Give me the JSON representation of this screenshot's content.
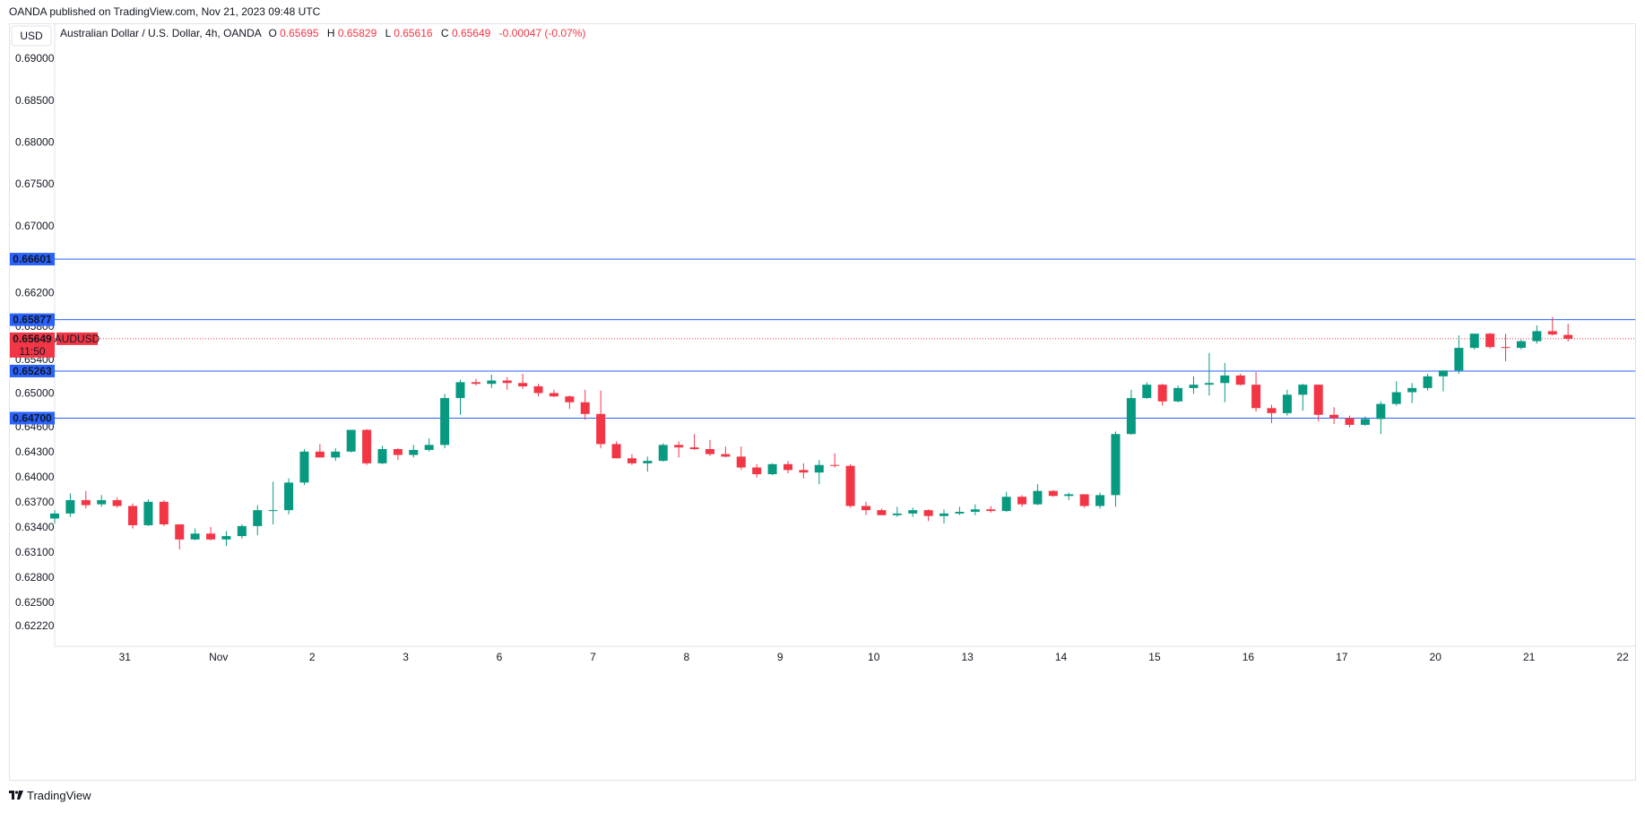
{
  "header": {
    "published_text": "OANDA published on TradingView.com, Nov 21, 2023 09:48 UTC"
  },
  "footer": {
    "logo_text": "TradingView"
  },
  "colors": {
    "up": "#089981",
    "down": "#f23645",
    "level_line": "#2962ff",
    "current_price_line": "#f23645",
    "grid_border": "#e0e3eb"
  },
  "chart_data": {
    "type": "candlestick",
    "currency_button": "USD",
    "legend": {
      "symbol_name": "Australian Dollar / U.S. Dollar, 4h, OANDA",
      "o_label": "O",
      "o_value": "0.65695",
      "h_label": "H",
      "h_value": "0.65829",
      "l_label": "L",
      "l_value": "0.65616",
      "c_label": "C",
      "c_value": "0.65649",
      "change": "-0.00047 (-0.07%)"
    },
    "y_axis": {
      "min": 0.61973,
      "max": 0.69409,
      "tick_labels": [
        "0.69000",
        "0.68500",
        "0.68000",
        "0.67500",
        "0.67000",
        "0.66200",
        "0.65800",
        "0.65400",
        "0.65000",
        "0.64600",
        "0.64300",
        "0.64000",
        "0.63700",
        "0.63400",
        "0.63100",
        "0.62800",
        "0.62500",
        "0.62220"
      ]
    },
    "x_axis": {
      "tick_labels": [
        "31",
        "Nov",
        "2",
        "3",
        "6",
        "7",
        "8",
        "9",
        "10",
        "13",
        "14",
        "15",
        "16",
        "17",
        "20",
        "21",
        "22"
      ],
      "tick_positions": [
        4.5,
        10.5,
        16.5,
        22.5,
        28.5,
        34.5,
        40.5,
        46.5,
        52.5,
        58.5,
        64.5,
        70.5,
        76.5,
        82.5,
        88.5,
        94.5,
        100.5
      ],
      "x_min": 0,
      "x_max": 101.3
    },
    "horizontal_levels": [
      {
        "label": "0.66601",
        "value": 0.66601
      },
      {
        "label": "0.65877",
        "value": 0.65877
      },
      {
        "label": "0.65263",
        "value": 0.65263
      },
      {
        "label": "0.64700",
        "value": 0.647
      }
    ],
    "current_price": {
      "value": 0.65649,
      "label": "0.65649",
      "countdown": "11:50",
      "symbol_tag": "AUDUSD"
    },
    "candles": [
      [
        0.635,
        0.636,
        0.6344,
        0.6356
      ],
      [
        0.6356,
        0.638,
        0.6352,
        0.6372
      ],
      [
        0.6372,
        0.6383,
        0.6362,
        0.6366
      ],
      [
        0.6367,
        0.6378,
        0.6364,
        0.6372
      ],
      [
        0.6372,
        0.6375,
        0.6363,
        0.6365
      ],
      [
        0.6365,
        0.6368,
        0.6338,
        0.6342
      ],
      [
        0.6342,
        0.6373,
        0.6341,
        0.637
      ],
      [
        0.637,
        0.6372,
        0.6341,
        0.6343
      ],
      [
        0.6343,
        0.6342,
        0.6313,
        0.6325
      ],
      [
        0.6325,
        0.6338,
        0.6324,
        0.6332
      ],
      [
        0.6332,
        0.634,
        0.6324,
        0.6325
      ],
      [
        0.6325,
        0.6335,
        0.6317,
        0.6329
      ],
      [
        0.6329,
        0.6343,
        0.6326,
        0.6341
      ],
      [
        0.6341,
        0.6366,
        0.633,
        0.636
      ],
      [
        0.636,
        0.6394,
        0.6343,
        0.636
      ],
      [
        0.636,
        0.6398,
        0.6355,
        0.6393
      ],
      [
        0.6393,
        0.6433,
        0.639,
        0.643
      ],
      [
        0.643,
        0.6439,
        0.6424,
        0.6423
      ],
      [
        0.6423,
        0.6434,
        0.6419,
        0.643
      ],
      [
        0.643,
        0.6456,
        0.6429,
        0.6456
      ],
      [
        0.6456,
        0.6457,
        0.6414,
        0.6416
      ],
      [
        0.6416,
        0.6437,
        0.6415,
        0.6433
      ],
      [
        0.6433,
        0.6434,
        0.642,
        0.6426
      ],
      [
        0.6426,
        0.6438,
        0.6423,
        0.6432
      ],
      [
        0.6432,
        0.6446,
        0.643,
        0.6438
      ],
      [
        0.6438,
        0.6499,
        0.6434,
        0.6494
      ],
      [
        0.6494,
        0.6516,
        0.6474,
        0.6513
      ],
      [
        0.6513,
        0.6517,
        0.6509,
        0.6511
      ],
      [
        0.6511,
        0.6522,
        0.6506,
        0.6515
      ],
      [
        0.6515,
        0.6519,
        0.6504,
        0.6512
      ],
      [
        0.6512,
        0.6523,
        0.6505,
        0.6508
      ],
      [
        0.6508,
        0.6511,
        0.6496,
        0.65
      ],
      [
        0.65,
        0.6504,
        0.6495,
        0.6496
      ],
      [
        0.6496,
        0.6497,
        0.6481,
        0.6489
      ],
      [
        0.6489,
        0.6504,
        0.6468,
        0.6475
      ],
      [
        0.6475,
        0.6503,
        0.6434,
        0.6439
      ],
      [
        0.6439,
        0.6442,
        0.6422,
        0.6422
      ],
      [
        0.6422,
        0.6427,
        0.6414,
        0.6416
      ],
      [
        0.6416,
        0.6424,
        0.6406,
        0.6419
      ],
      [
        0.6419,
        0.644,
        0.6418,
        0.6438
      ],
      [
        0.6438,
        0.6442,
        0.6423,
        0.6435
      ],
      [
        0.6435,
        0.6451,
        0.6432,
        0.6433
      ],
      [
        0.6433,
        0.6444,
        0.6425,
        0.6427
      ],
      [
        0.6427,
        0.6436,
        0.6423,
        0.6424
      ],
      [
        0.6424,
        0.6436,
        0.6408,
        0.6411
      ],
      [
        0.6411,
        0.6415,
        0.6399,
        0.6403
      ],
      [
        0.6403,
        0.6416,
        0.6402,
        0.6415
      ],
      [
        0.6415,
        0.6419,
        0.6404,
        0.6408
      ],
      [
        0.6408,
        0.6416,
        0.6398,
        0.6405
      ],
      [
        0.6405,
        0.642,
        0.6391,
        0.6414
      ],
      [
        0.6414,
        0.6428,
        0.6411,
        0.6413
      ],
      [
        0.6413,
        0.6415,
        0.6363,
        0.6365
      ],
      [
        0.6365,
        0.637,
        0.6354,
        0.636
      ],
      [
        0.636,
        0.6362,
        0.6356,
        0.6354
      ],
      [
        0.6354,
        0.6364,
        0.6352,
        0.6356
      ],
      [
        0.6356,
        0.6363,
        0.6352,
        0.636
      ],
      [
        0.636,
        0.6361,
        0.6347,
        0.6353
      ],
      [
        0.6353,
        0.6361,
        0.6344,
        0.6356
      ],
      [
        0.6356,
        0.6364,
        0.6354,
        0.6358
      ],
      [
        0.6358,
        0.6367,
        0.6354,
        0.6361
      ],
      [
        0.6361,
        0.6365,
        0.6357,
        0.6359
      ],
      [
        0.6359,
        0.6382,
        0.6358,
        0.6376
      ],
      [
        0.6376,
        0.6378,
        0.6364,
        0.6367
      ],
      [
        0.6367,
        0.6391,
        0.6366,
        0.6383
      ],
      [
        0.6383,
        0.6384,
        0.6376,
        0.6377
      ],
      [
        0.6377,
        0.6381,
        0.6372,
        0.6379
      ],
      [
        0.6379,
        0.6379,
        0.6363,
        0.6365
      ],
      [
        0.6365,
        0.6381,
        0.6362,
        0.6378
      ],
      [
        0.6378,
        0.6454,
        0.6364,
        0.6451
      ],
      [
        0.6451,
        0.6504,
        0.645,
        0.6494
      ],
      [
        0.6494,
        0.6513,
        0.6493,
        0.651
      ],
      [
        0.651,
        0.6511,
        0.6485,
        0.649
      ],
      [
        0.649,
        0.6509,
        0.6489,
        0.6506
      ],
      [
        0.6506,
        0.652,
        0.6499,
        0.651
      ],
      [
        0.651,
        0.6548,
        0.6497,
        0.6512
      ],
      [
        0.6512,
        0.6536,
        0.6489,
        0.6521
      ],
      [
        0.6521,
        0.6523,
        0.6509,
        0.651
      ],
      [
        0.651,
        0.6525,
        0.6478,
        0.6482
      ],
      [
        0.6482,
        0.6486,
        0.6464,
        0.6476
      ],
      [
        0.6476,
        0.6504,
        0.6473,
        0.6498
      ],
      [
        0.6498,
        0.6511,
        0.6479,
        0.651
      ],
      [
        0.651,
        0.651,
        0.6466,
        0.6474
      ],
      [
        0.6474,
        0.6483,
        0.6463,
        0.647
      ],
      [
        0.647,
        0.6473,
        0.6459,
        0.6462
      ],
      [
        0.6462,
        0.6472,
        0.6461,
        0.6469
      ],
      [
        0.6469,
        0.649,
        0.6451,
        0.6487
      ],
      [
        0.6487,
        0.6514,
        0.6485,
        0.6501
      ],
      [
        0.6501,
        0.6512,
        0.6488,
        0.6506
      ],
      [
        0.6506,
        0.6523,
        0.6503,
        0.652
      ],
      [
        0.652,
        0.6525,
        0.6502,
        0.6527
      ],
      [
        0.6527,
        0.6569,
        0.6523,
        0.6554
      ],
      [
        0.6554,
        0.6569,
        0.6552,
        0.6571
      ],
      [
        0.6571,
        0.6572,
        0.6553,
        0.6555
      ],
      [
        0.6555,
        0.6571,
        0.6538,
        0.6554
      ],
      [
        0.6554,
        0.6564,
        0.6552,
        0.6562
      ],
      [
        0.6562,
        0.6581,
        0.6559,
        0.6574
      ],
      [
        0.6574,
        0.6591,
        0.6569,
        0.657
      ],
      [
        0.65695,
        0.65829,
        0.65616,
        0.65649
      ]
    ]
  }
}
